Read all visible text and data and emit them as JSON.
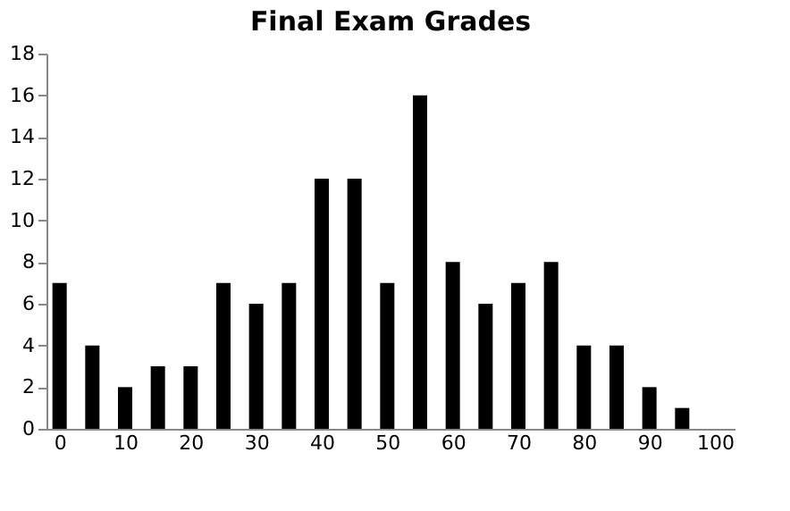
{
  "chart_data": {
    "type": "bar",
    "title": "Final Exam Grades",
    "x": [
      0,
      5,
      10,
      15,
      20,
      25,
      30,
      35,
      40,
      45,
      50,
      55,
      60,
      65,
      70,
      75,
      80,
      85,
      90,
      95
    ],
    "values": [
      7,
      4,
      2,
      3,
      3,
      7,
      6,
      7,
      12,
      12,
      7,
      16,
      8,
      6,
      7,
      8,
      4,
      4,
      2,
      1
    ],
    "color": "#000000",
    "xlim": [
      -2,
      103
    ],
    "xticks": [
      0,
      10,
      20,
      30,
      40,
      50,
      60,
      70,
      80,
      90,
      100
    ],
    "ylim": [
      0,
      18
    ],
    "yticks": [
      0,
      2,
      4,
      6,
      8,
      10,
      12,
      14,
      16,
      18
    ],
    "grid": false
  }
}
